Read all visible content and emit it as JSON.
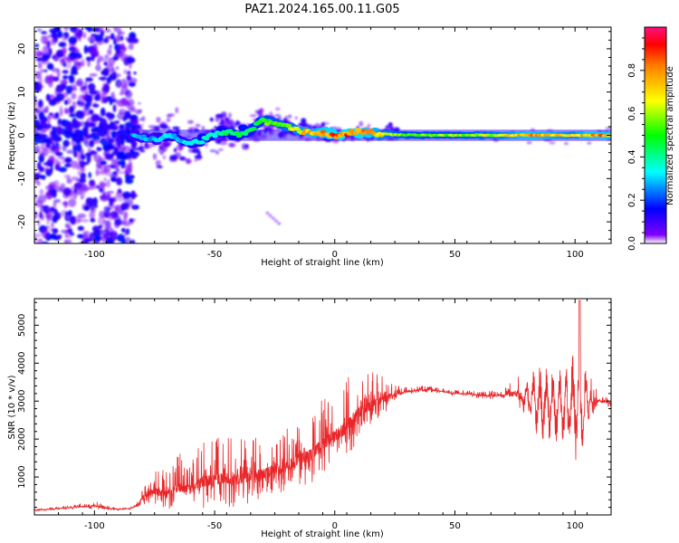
{
  "figure": {
    "title": "PAZ1.2024.165.00.11.G05"
  },
  "chart_data": [
    {
      "type": "heatmap",
      "title": "PAZ1.2024.165.00.11.G05",
      "xlabel": "Height of straight line (km)",
      "ylabel": "Frequency (Hz)",
      "xlim": [
        -125,
        115
      ],
      "ylim": [
        -25,
        25
      ],
      "xticks": [
        -100,
        -50,
        0,
        50,
        100
      ],
      "xtick_labels": [
        "-100",
        "-50",
        "0",
        "50",
        "100"
      ],
      "yticks": [
        -20,
        -10,
        0,
        10,
        20
      ],
      "ytick_labels": [
        "-20",
        "-10",
        "0",
        "10",
        "20"
      ],
      "grid": false,
      "colorbar": {
        "label": "Normalized spectral amplitude",
        "range": [
          0,
          1
        ],
        "ticks": [
          0.0,
          0.2,
          0.4,
          0.6,
          0.8
        ],
        "tick_labels": [
          "0.0",
          "0.2",
          "0.4",
          "0.6",
          "0.8"
        ],
        "colormap": "gist_rainbow_r",
        "colors": [
          "#ffffff",
          "#7f00ff",
          "#0000ff",
          "#00ffff",
          "#00ff00",
          "#ffff00",
          "#ff7f00",
          "#ff0000",
          "#ff1080"
        ]
      },
      "ridge": {
        "x": [
          -82,
          -75,
          -70,
          -65,
          -60,
          -55,
          -50,
          -45,
          -40,
          -35,
          -30,
          -25,
          -20,
          -15,
          -10,
          -5,
          0,
          5,
          10,
          15,
          20,
          30,
          40,
          50,
          60,
          70,
          80,
          90,
          100,
          105,
          115
        ],
        "frequency": [
          0,
          -1,
          0,
          -1,
          -2,
          -1,
          0,
          1,
          0,
          1,
          3.5,
          3,
          2,
          1.2,
          0.8,
          0.5,
          0,
          0.3,
          1,
          0.5,
          0.3,
          0.1,
          0,
          0,
          0,
          0,
          0,
          0,
          0,
          0,
          0
        ],
        "amplitude": [
          0.3,
          0.3,
          0.35,
          0.3,
          0.35,
          0.4,
          0.4,
          0.45,
          0.45,
          0.5,
          0.55,
          0.6,
          0.65,
          0.7,
          0.8,
          0.85,
          0.9,
          0.9,
          0.9,
          0.85,
          0.7,
          0.6,
          0.6,
          0.6,
          0.65,
          0.7,
          0.85,
          0.8,
          0.7,
          0.85,
          0.85
        ]
      }
    },
    {
      "type": "line",
      "xlabel": "Height of straight line (km)",
      "ylabel": "SNR (10 * v/v)",
      "xlim": [
        -125,
        115
      ],
      "ylim": [
        0,
        5700
      ],
      "xticks": [
        -100,
        -50,
        0,
        50,
        100
      ],
      "xtick_labels": [
        "-100",
        "-50",
        "0",
        "50",
        "100"
      ],
      "yticks": [
        1000,
        2000,
        3000,
        4000,
        5000
      ],
      "ytick_labels": [
        "1000",
        "2000",
        "3000",
        "4000",
        "5000"
      ],
      "grid": false,
      "color": "#e8272a",
      "series": [
        {
          "x": [
            -125,
            -115,
            -105,
            -100,
            -95,
            -90,
            -85,
            -82,
            -80,
            -75,
            -70,
            -65,
            -60,
            -55,
            -50,
            -45,
            -40,
            -35,
            -30,
            -25,
            -20,
            -15,
            -10,
            -5,
            0,
            5,
            10,
            15,
            20,
            25,
            30,
            35,
            40,
            45,
            50,
            55,
            60,
            65,
            70,
            75,
            80,
            85,
            90,
            95,
            100,
            103,
            106,
            110,
            115
          ],
          "y": [
            120,
            170,
            220,
            240,
            180,
            150,
            170,
            250,
            480,
            650,
            550,
            750,
            700,
            900,
            950,
            1000,
            950,
            1050,
            1100,
            1200,
            1300,
            1500,
            1600,
            1900,
            2100,
            2350,
            2700,
            2900,
            3050,
            3150,
            3250,
            3300,
            3300,
            3250,
            3200,
            3200,
            3150,
            3150,
            3150,
            3200,
            3100,
            2900,
            2950,
            2800,
            2900,
            2900,
            3000,
            3000,
            2950
          ],
          "amplitude": [
            25,
            25,
            50,
            80,
            40,
            25,
            25,
            60,
            150,
            350,
            350,
            500,
            450,
            600,
            600,
            650,
            600,
            600,
            550,
            600,
            600,
            600,
            650,
            650,
            700,
            750,
            550,
            500,
            350,
            150,
            70,
            60,
            50,
            50,
            50,
            50,
            60,
            80,
            100,
            250,
            500,
            1000,
            1000,
            1000,
            1500,
            1300,
            400,
            100,
            80
          ]
        }
      ]
    }
  ]
}
